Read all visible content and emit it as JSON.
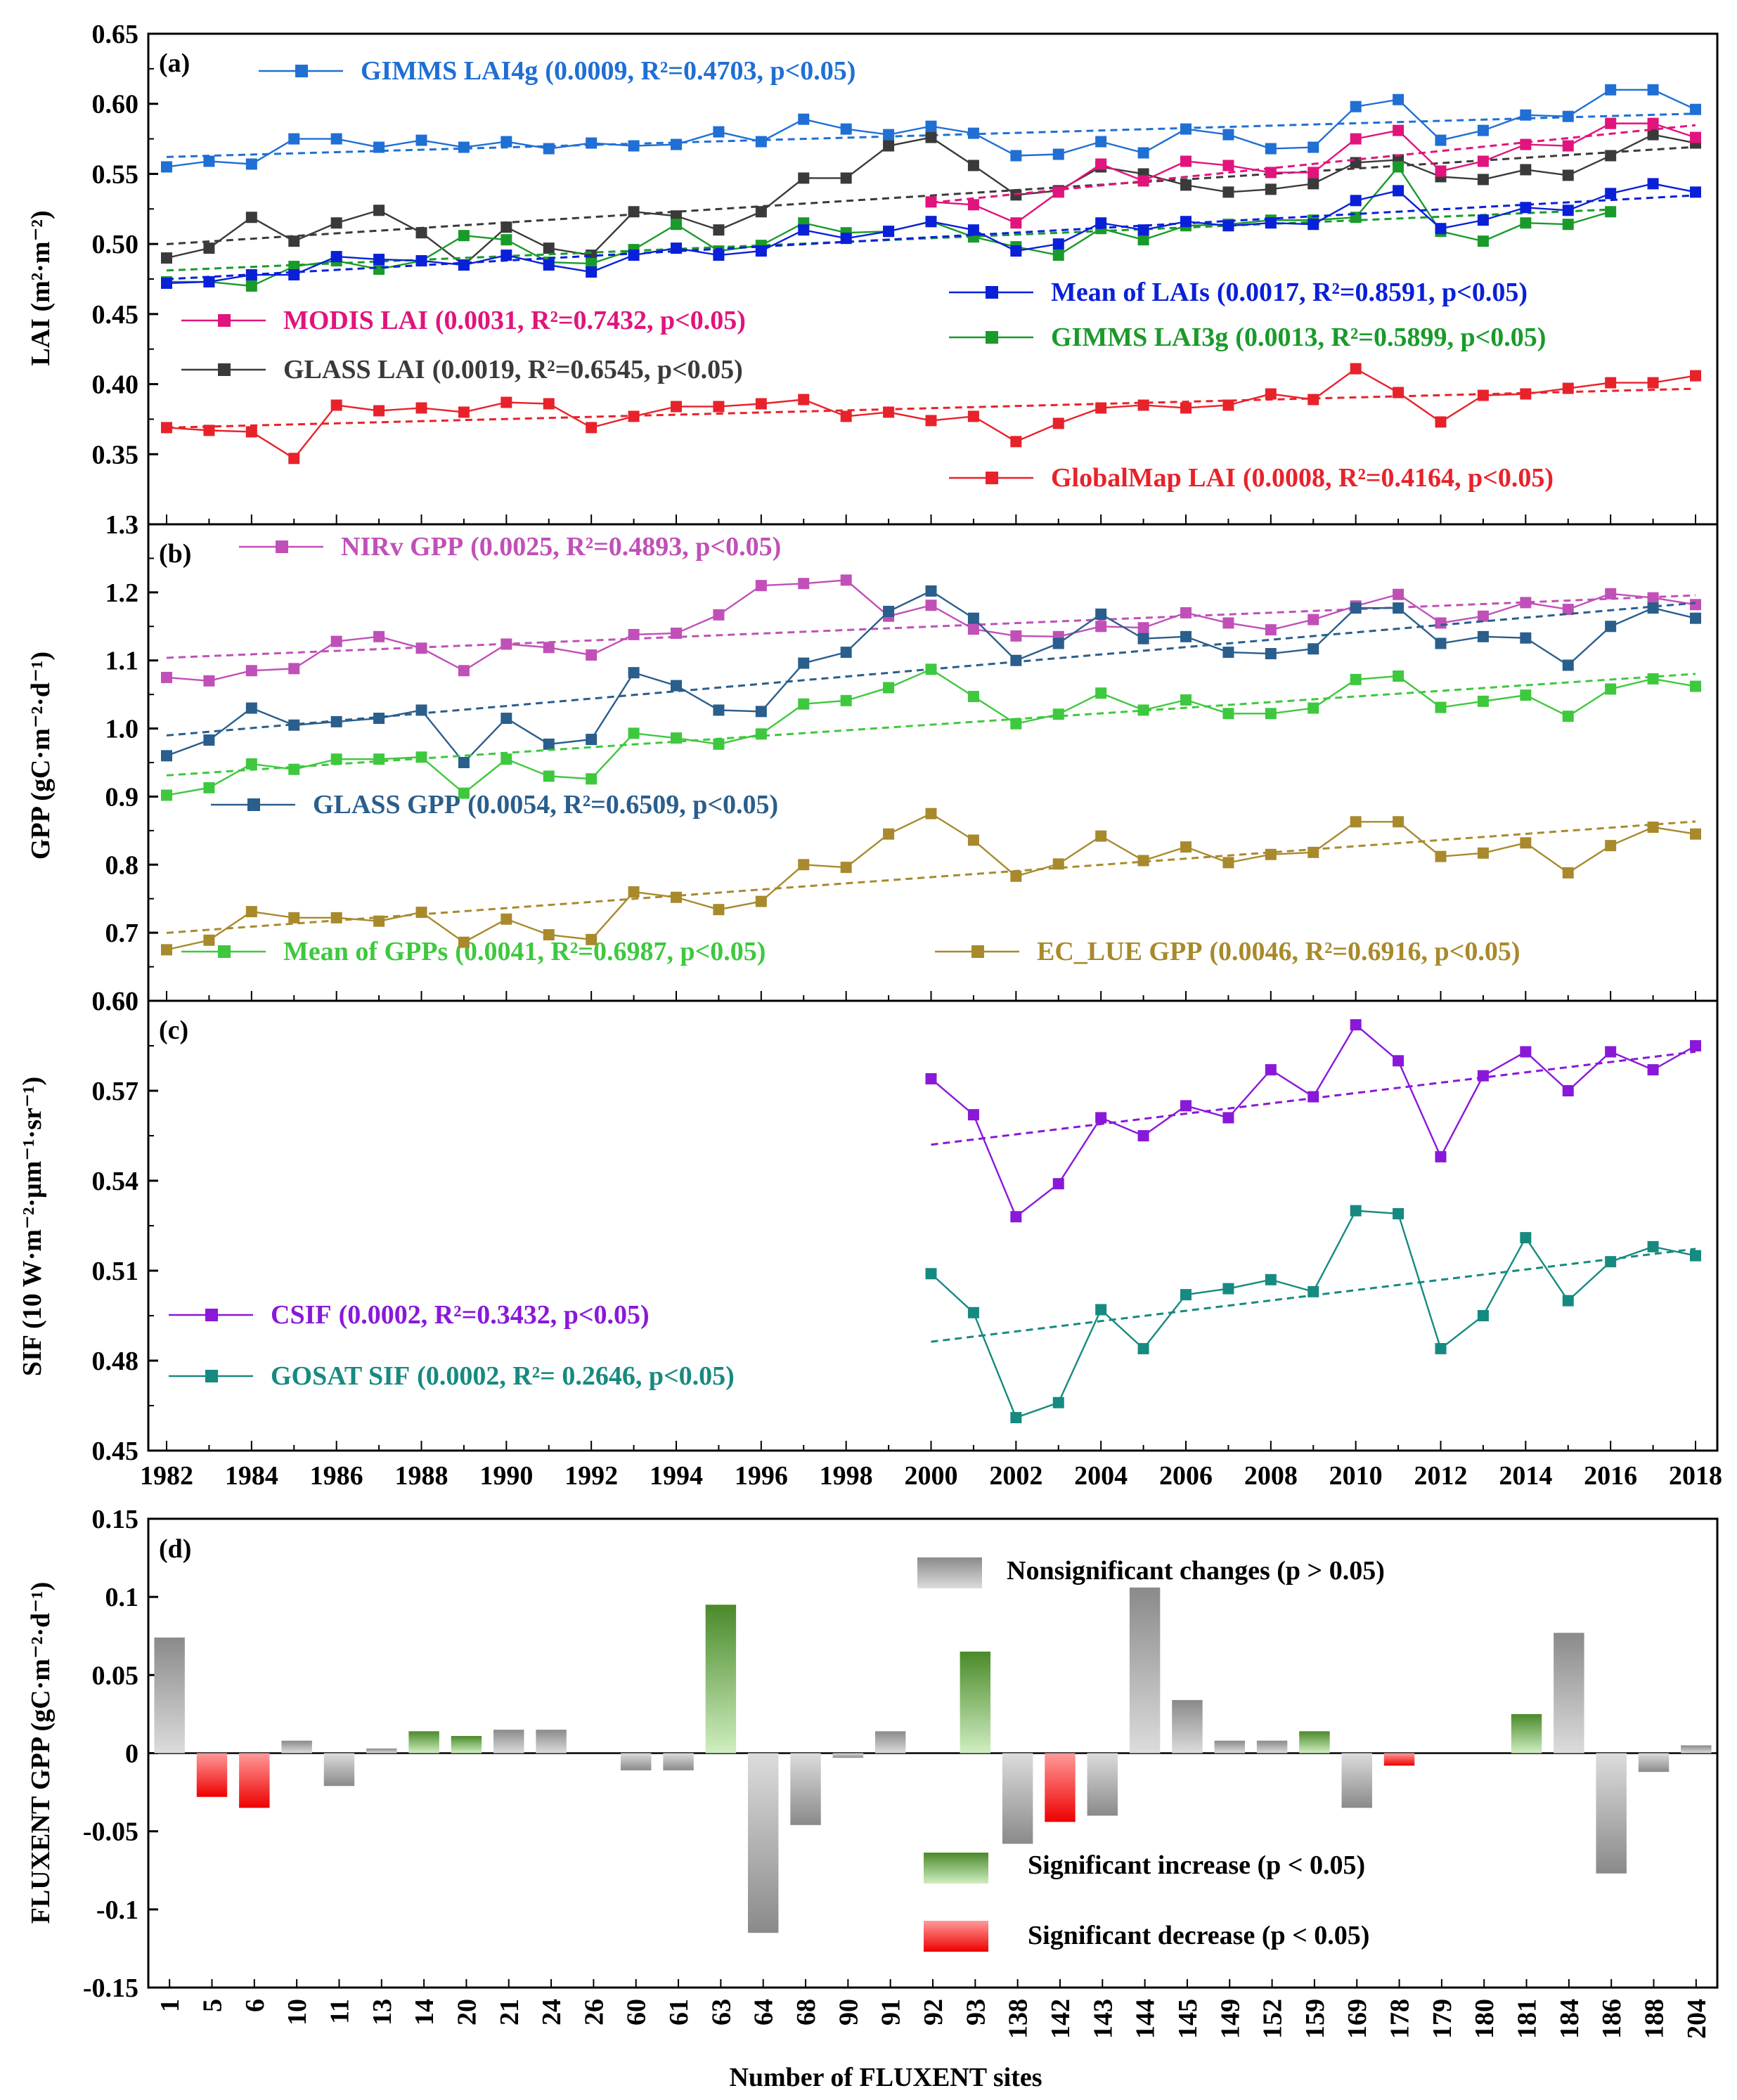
{
  "chart_data": [
    {
      "type": "line",
      "panel_label": "(a)",
      "ylabel": "LAI (m²·m⁻²)",
      "ylim": [
        0.3,
        0.65
      ],
      "yticks": [
        "0.35",
        "0.40",
        "0.45",
        "0.50",
        "0.55",
        "0.60",
        "0.65"
      ],
      "x_start": 1982,
      "x_end": 2018,
      "series": [
        {
          "name": "GIMMS LAI4g",
          "stats": "(0.0009, R²=0.4703, p<0.05)",
          "color": "#1f6fd4",
          "x0": 1982,
          "values": [
            0.555,
            0.559,
            0.557,
            0.575,
            0.575,
            0.569,
            0.574,
            0.569,
            0.573,
            0.568,
            0.572,
            0.57,
            0.571,
            0.58,
            0.573,
            0.589,
            0.582,
            0.578,
            0.584,
            0.579,
            0.563,
            0.564,
            0.573,
            0.565,
            0.582,
            0.578,
            0.568,
            0.569,
            0.598,
            0.603,
            0.574,
            0.581,
            0.592,
            0.591,
            0.61,
            0.61,
            0.596
          ]
        },
        {
          "name": "GLASS LAI",
          "stats": "(0.0019, R²=0.6545, p<0.05)",
          "color": "#3a3a3a",
          "x0": 1982,
          "values": [
            0.49,
            0.497,
            0.519,
            0.502,
            0.515,
            0.524,
            0.508,
            0.485,
            0.512,
            0.497,
            0.492,
            0.523,
            0.52,
            0.51,
            0.523,
            0.547,
            0.547,
            0.57,
            0.576,
            0.556,
            0.535,
            0.538,
            0.555,
            0.55,
            0.542,
            0.537,
            0.539,
            0.543,
            0.558,
            0.56,
            0.548,
            0.546,
            0.553,
            0.549,
            0.563,
            0.578,
            0.572
          ]
        },
        {
          "name": "GIMMS LAI3g",
          "stats": "(0.0013, R²=0.5899, p<0.05)",
          "color": "#1a9a2a",
          "x0": 1982,
          "values": [
            0.473,
            0.473,
            0.47,
            0.484,
            0.488,
            0.482,
            0.488,
            0.506,
            0.503,
            0.487,
            0.486,
            0.496,
            0.514,
            0.495,
            0.499,
            0.515,
            0.508,
            0.509,
            0.516,
            0.505,
            0.498,
            0.492,
            0.511,
            0.503,
            0.513,
            0.514,
            0.517,
            0.517,
            0.519,
            0.555,
            0.509,
            0.502,
            0.515,
            0.514,
            0.523
          ]
        },
        {
          "name": "Mean of LAIs",
          "stats": "(0.0017, R²=0.8591, p<0.05)",
          "color": "#0a20d8",
          "x0": 1982,
          "values": [
            0.472,
            0.473,
            0.478,
            0.478,
            0.491,
            0.489,
            0.488,
            0.485,
            0.492,
            0.485,
            0.48,
            0.492,
            0.497,
            0.492,
            0.495,
            0.51,
            0.504,
            0.509,
            0.516,
            0.51,
            0.495,
            0.5,
            0.515,
            0.51,
            0.516,
            0.513,
            0.515,
            0.514,
            0.531,
            0.538,
            0.511,
            0.517,
            0.526,
            0.524,
            0.536,
            0.543,
            0.537
          ]
        },
        {
          "name": "MODIS LAI",
          "stats": "(0.0031, R²=0.7432, p<0.05)",
          "color": "#e0147c",
          "x0": 2000,
          "values": [
            0.53,
            0.528,
            0.515,
            0.537,
            0.557,
            0.545,
            0.559,
            0.556,
            0.551,
            0.551,
            0.575,
            0.581,
            0.552,
            0.559,
            0.571,
            0.57,
            0.586,
            0.586,
            0.576
          ]
        },
        {
          "name": "GlobalMap LAI",
          "stats": "(0.0008, R²=0.4164, p<0.05)",
          "color": "#e8222a",
          "x0": 1982,
          "values": [
            0.369,
            0.367,
            0.366,
            0.347,
            0.385,
            0.381,
            0.383,
            0.38,
            0.387,
            0.386,
            0.369,
            0.377,
            0.384,
            0.384,
            0.386,
            0.389,
            0.377,
            0.38,
            0.374,
            0.377,
            0.359,
            0.372,
            0.383,
            0.385,
            0.383,
            0.385,
            0.393,
            0.389,
            0.411,
            0.394,
            0.373,
            0.392,
            0.393,
            0.397,
            0.401,
            0.401,
            0.406
          ]
        }
      ]
    },
    {
      "type": "line",
      "panel_label": "(b)",
      "ylabel": "GPP (gC·m⁻²·d⁻¹)",
      "ylim": [
        0.6,
        1.3
      ],
      "yticks": [
        "0.60",
        "0.7",
        "0.8",
        "0.9",
        "1.0",
        "1.1",
        "1.2",
        "1.3"
      ],
      "x_start": 1982,
      "x_end": 2018,
      "series": [
        {
          "name": "NIRv GPP",
          "stats": "(0.0025, R²=0.4893, p<0.05)",
          "color": "#c050b8",
          "x0": 1982,
          "values": [
            1.075,
            1.07,
            1.085,
            1.088,
            1.128,
            1.135,
            1.118,
            1.085,
            1.124,
            1.119,
            1.108,
            1.138,
            1.14,
            1.167,
            1.21,
            1.213,
            1.218,
            1.165,
            1.181,
            1.146,
            1.136,
            1.135,
            1.15,
            1.148,
            1.17,
            1.155,
            1.145,
            1.16,
            1.18,
            1.197,
            1.155,
            1.165,
            1.185,
            1.175,
            1.198,
            1.192,
            1.182
          ]
        },
        {
          "name": "GLASS GPP",
          "stats": "(0.0054, R²=0.6509, p<0.05)",
          "color": "#2a5e8c",
          "x0": 1982,
          "values": [
            0.96,
            0.983,
            1.03,
            1.005,
            1.01,
            1.015,
            1.027,
            0.95,
            1.015,
            0.977,
            0.984,
            1.082,
            1.063,
            1.027,
            1.025,
            1.096,
            1.112,
            1.172,
            1.202,
            1.162,
            1.1,
            1.125,
            1.168,
            1.132,
            1.135,
            1.112,
            1.11,
            1.117,
            1.177,
            1.177,
            1.125,
            1.135,
            1.133,
            1.093,
            1.15,
            1.177,
            1.162
          ]
        },
        {
          "name": "Mean of GPPs",
          "stats": "(0.0041, R²=0.6987, p<0.05)",
          "color": "#3ec83e",
          "x0": 1982,
          "values": [
            0.902,
            0.913,
            0.948,
            0.94,
            0.955,
            0.955,
            0.958,
            0.905,
            0.955,
            0.93,
            0.926,
            0.993,
            0.986,
            0.977,
            0.992,
            1.036,
            1.041,
            1.06,
            1.087,
            1.047,
            1.007,
            1.021,
            1.052,
            1.027,
            1.042,
            1.022,
            1.022,
            1.03,
            1.072,
            1.077,
            1.031,
            1.04,
            1.049,
            1.018,
            1.058,
            1.073,
            1.062
          ]
        },
        {
          "name": "EC_LUE GPP",
          "stats": "(0.0046, R²=0.6916, p<0.05)",
          "color": "#a88a2c",
          "x0": 1982,
          "values": [
            0.675,
            0.689,
            0.731,
            0.722,
            0.722,
            0.717,
            0.73,
            0.686,
            0.72,
            0.697,
            0.69,
            0.76,
            0.752,
            0.734,
            0.746,
            0.8,
            0.796,
            0.845,
            0.875,
            0.836,
            0.783,
            0.801,
            0.842,
            0.806,
            0.826,
            0.803,
            0.815,
            0.818,
            0.863,
            0.863,
            0.812,
            0.817,
            0.832,
            0.788,
            0.828,
            0.855,
            0.845
          ]
        }
      ]
    },
    {
      "type": "line",
      "panel_label": "(c)",
      "ylabel": "SIF (10 W·m⁻²·μm⁻¹·sr⁻¹)",
      "ylim": [
        0.45,
        0.6
      ],
      "yticks": [
        "0.45",
        "0.48",
        "0.51",
        "0.54",
        "0.57",
        "0.60"
      ],
      "xlabel_ticks": [
        "1982",
        "1984",
        "1986",
        "1988",
        "1990",
        "1992",
        "1994",
        "1996",
        "1998",
        "2000",
        "2002",
        "2004",
        "2006",
        "2008",
        "2010",
        "2012",
        "2014",
        "2016",
        "2018"
      ],
      "x_start": 1982,
      "x_end": 2018,
      "series": [
        {
          "name": "CSIF",
          "stats": "(0.0002, R²=0.3432, p<0.05)",
          "color": "#8a18d8",
          "x0": 2000,
          "values": [
            0.574,
            0.562,
            0.528,
            0.539,
            0.561,
            0.555,
            0.565,
            0.561,
            0.577,
            0.568,
            0.592,
            0.58,
            0.548,
            0.575,
            0.583,
            0.57,
            0.583,
            0.577,
            0.585
          ]
        },
        {
          "name": "GOSAT SIF",
          "stats": "(0.0002, R²= 0.2646, p<0.05)",
          "color": "#168a80",
          "x0": 2000,
          "values": [
            0.509,
            0.496,
            0.461,
            0.466,
            0.497,
            0.484,
            0.502,
            0.504,
            0.507,
            0.503,
            0.53,
            0.529,
            0.484,
            0.495,
            0.521,
            0.5,
            0.513,
            0.518,
            0.515
          ]
        }
      ]
    },
    {
      "type": "bar",
      "panel_label": "(d)",
      "ylabel": "FLUXENT  GPP (gC·m⁻²·d⁻¹)",
      "xlabel": "Number of FLUXENT  sites",
      "ylim": [
        -0.15,
        0.15
      ],
      "yticks": [
        "-0.15",
        "-0.1",
        "-0.05",
        "0",
        "0.05",
        "0.1",
        "0.15"
      ],
      "categories": [
        "1",
        "5",
        "6",
        "10",
        "11",
        "13",
        "14",
        "20",
        "21",
        "24",
        "26",
        "60",
        "61",
        "63",
        "64",
        "68",
        "90",
        "91",
        "92",
        "93",
        "138",
        "142",
        "143",
        "144",
        "145",
        "149",
        "152",
        "159",
        "169",
        "178",
        "179",
        "180",
        "181",
        "184",
        "186",
        "188",
        "204"
      ],
      "values": [
        0.074,
        -0.028,
        -0.035,
        0.008,
        -0.021,
        0.003,
        0.014,
        0.011,
        0.015,
        0.015,
        0.0,
        -0.011,
        -0.011,
        0.095,
        -0.115,
        -0.046,
        -0.003,
        0.014,
        0.0,
        0.065,
        -0.058,
        -0.044,
        -0.04,
        0.106,
        0.034,
        0.008,
        0.008,
        0.014,
        -0.035,
        -0.008,
        0.0,
        0.0,
        0.025,
        0.077,
        -0.077,
        -0.012,
        0.005
      ],
      "status": [
        "n",
        "d",
        "d",
        "n",
        "n",
        "n",
        "i",
        "i",
        "n",
        "n",
        "n",
        "n",
        "n",
        "i",
        "n",
        "n",
        "n",
        "n",
        "n",
        "i",
        "n",
        "d",
        "n",
        "n",
        "n",
        "n",
        "n",
        "i",
        "n",
        "d",
        "n",
        "n",
        "i",
        "n",
        "n",
        "n",
        "n"
      ],
      "legend": [
        "Nonsignificant changes (p > 0.05)",
        "Significant increase (p < 0.05)",
        "Significant decrease (p < 0.05)"
      ]
    }
  ]
}
